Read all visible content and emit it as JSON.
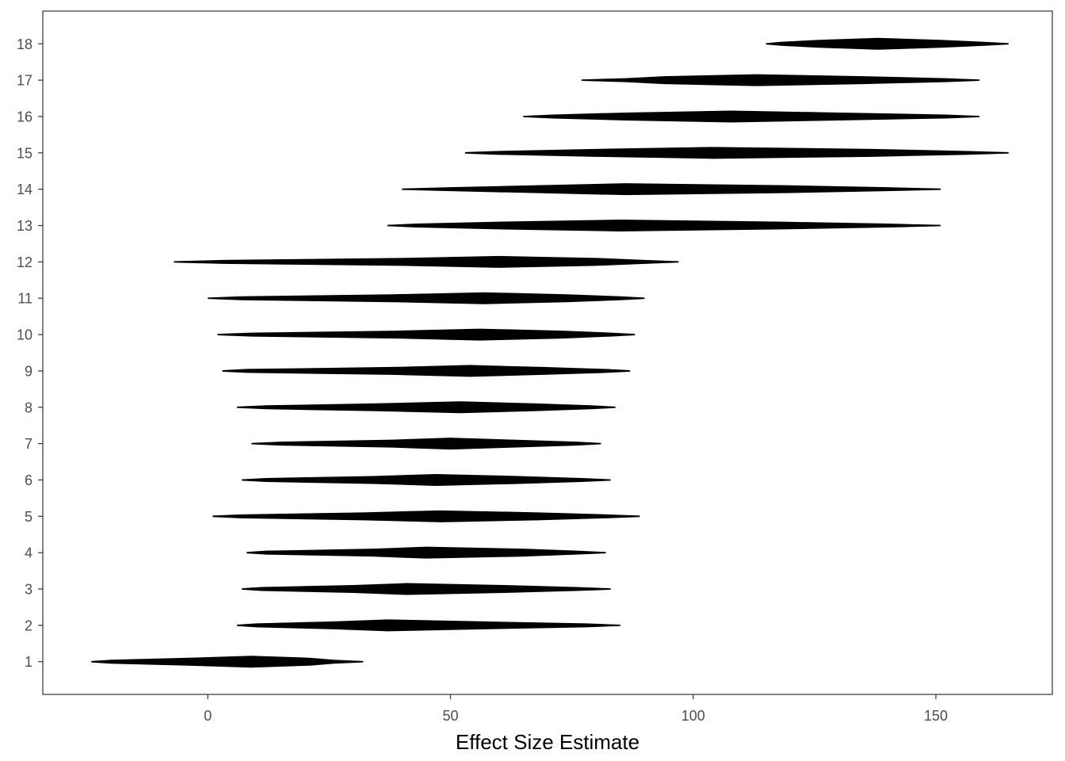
{
  "chart_data": {
    "type": "interval",
    "xlabel": "Effect Size Estimate",
    "ylabel": "",
    "xlim": [
      -34,
      174
    ],
    "ylim": [
      0.1,
      18.9
    ],
    "x_ticks": [
      0,
      50,
      100,
      150
    ],
    "y_ticks": [
      1,
      2,
      3,
      4,
      5,
      6,
      7,
      8,
      9,
      10,
      11,
      12,
      13,
      14,
      15,
      16,
      17,
      18
    ],
    "grid": false,
    "legend": "none",
    "colors": {
      "mark": "#000000",
      "frame": "#333333",
      "tick_text": "#4d4d4d"
    },
    "rows": [
      {
        "y": 1,
        "center": 9,
        "outer": [
          -24,
          32
        ],
        "mid": [
          -20,
          26
        ],
        "inner": [
          -4,
          21
        ]
      },
      {
        "y": 2,
        "center": 37,
        "outer": [
          6,
          85
        ],
        "mid": [
          10,
          78
        ],
        "inner": [
          26,
          57
        ]
      },
      {
        "y": 3,
        "center": 41,
        "outer": [
          7,
          83
        ],
        "mid": [
          11,
          76
        ],
        "inner": [
          30,
          61
        ]
      },
      {
        "y": 4,
        "center": 45,
        "outer": [
          8,
          82
        ],
        "mid": [
          12,
          76
        ],
        "inner": [
          34,
          65
        ]
      },
      {
        "y": 5,
        "center": 48,
        "outer": [
          1,
          89
        ],
        "mid": [
          7,
          82
        ],
        "inner": [
          32,
          68
        ]
      },
      {
        "y": 6,
        "center": 47,
        "outer": [
          7,
          83
        ],
        "mid": [
          12,
          77
        ],
        "inner": [
          34,
          64
        ]
      },
      {
        "y": 7,
        "center": 50,
        "outer": [
          9,
          81
        ],
        "mid": [
          15,
          76
        ],
        "inner": [
          38,
          63
        ]
      },
      {
        "y": 8,
        "center": 52,
        "outer": [
          6,
          84
        ],
        "mid": [
          12,
          79
        ],
        "inner": [
          35,
          67
        ]
      },
      {
        "y": 9,
        "center": 54,
        "outer": [
          3,
          87
        ],
        "mid": [
          8,
          82
        ],
        "inner": [
          38,
          69
        ]
      },
      {
        "y": 10,
        "center": 56,
        "outer": [
          2,
          88
        ],
        "mid": [
          9,
          83
        ],
        "inner": [
          39,
          73
        ]
      },
      {
        "y": 11,
        "center": 57,
        "outer": [
          0,
          90
        ],
        "mid": [
          7,
          85
        ],
        "inner": [
          38,
          74
        ]
      },
      {
        "y": 12,
        "center": 60,
        "outer": [
          -7,
          97
        ],
        "mid": [
          3,
          90
        ],
        "inner": [
          40,
          80
        ]
      },
      {
        "y": 13,
        "center": 85,
        "outer": [
          37,
          151
        ],
        "mid": [
          43,
          140
        ],
        "inner": [
          61,
          117
        ]
      },
      {
        "y": 14,
        "center": 86,
        "outer": [
          40,
          151
        ],
        "mid": [
          50,
          140
        ],
        "inner": [
          68,
          119
        ]
      },
      {
        "y": 15,
        "center": 104,
        "outer": [
          53,
          165
        ],
        "mid": [
          60,
          156
        ],
        "inner": [
          80,
          137
        ]
      },
      {
        "y": 16,
        "center": 108,
        "outer": [
          65,
          159
        ],
        "mid": [
          71,
          152
        ],
        "inner": [
          86,
          130
        ]
      },
      {
        "y": 17,
        "center": 113,
        "outer": [
          77,
          159
        ],
        "mid": [
          86,
          152
        ],
        "inner": [
          94,
          135
        ]
      },
      {
        "y": 18,
        "center": 138,
        "outer": [
          115,
          165
        ],
        "mid": [
          118,
          160
        ],
        "inner": [
          126,
          151
        ]
      }
    ]
  }
}
